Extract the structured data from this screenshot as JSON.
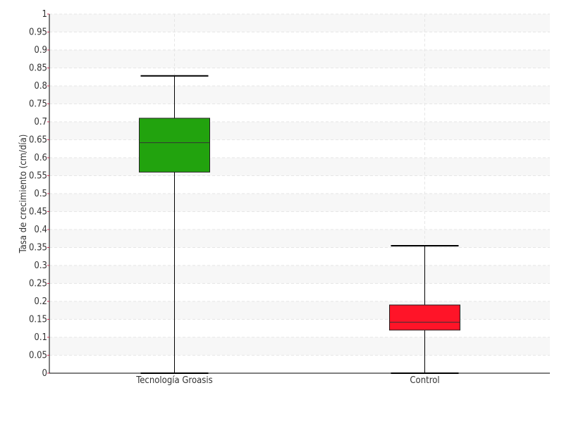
{
  "chart_data": {
    "type": "boxplot",
    "ylabel": "Tasa de crecimiento (cm/día)",
    "xlabel": "",
    "ylim": [
      0,
      1
    ],
    "y_ticks": [
      "0",
      "0.05",
      "0.1",
      "0.15",
      "0.2",
      "0.25",
      "0.3",
      "0.35",
      "0.4",
      "0.45",
      "0.5",
      "0.55",
      "0.6",
      "0.65",
      "0.7",
      "0.75",
      "0.8",
      "0.85",
      "0.9",
      "0.95",
      "1"
    ],
    "grid": true,
    "categories": [
      "Tecnología Groasis",
      "Control"
    ],
    "boxes": [
      {
        "category": "Tecnología Groasis",
        "min": 0.0,
        "q1": 0.56,
        "median": 0.642,
        "q3": 0.71,
        "max": 0.828,
        "color": "#22a30e"
      },
      {
        "category": "Control",
        "min": 0.0,
        "q1": 0.12,
        "median": 0.142,
        "q3": 0.19,
        "max": 0.355,
        "color": "#ff1428"
      }
    ],
    "colors": {
      "axis": "#000000",
      "tick_mark": "#cc3355",
      "grid": "#e6e6e6",
      "band": "#f7f7f7",
      "whisker": "#000000"
    }
  }
}
